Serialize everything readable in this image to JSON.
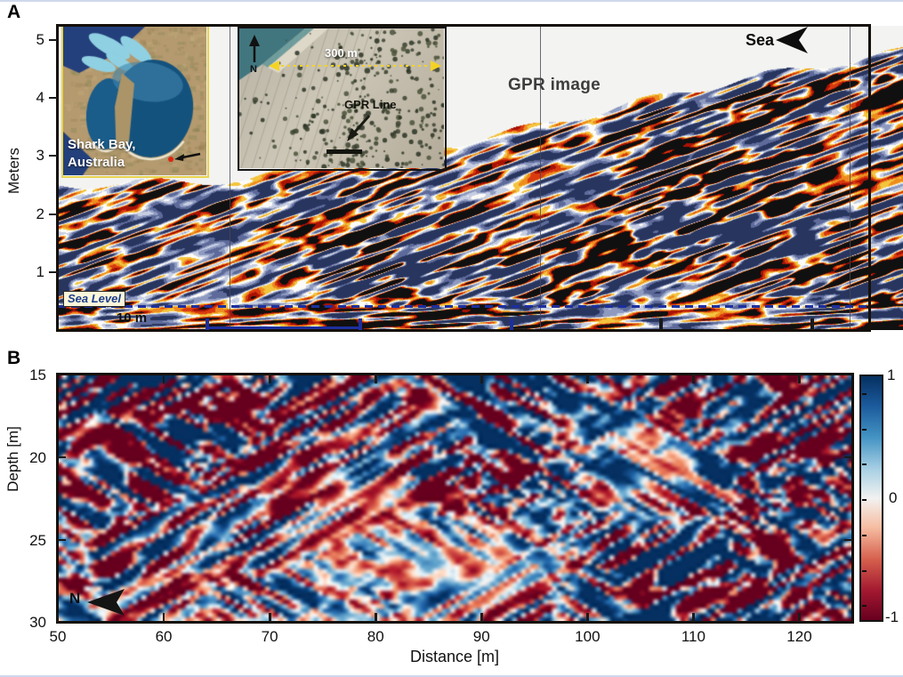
{
  "panel_a": {
    "label": "A",
    "y_axis_label": "Meters",
    "y_tick_labels": [
      "5",
      "4",
      "3",
      "2",
      "1"
    ],
    "sea_label": "Sea",
    "section_label": "GPR image",
    "sea_level_label": "Sea Level",
    "scale_label": "10 m",
    "satellite_inset": {
      "caption_line1": "Shark Bay,",
      "caption_line2": "Australia"
    },
    "aerial_inset": {
      "north_label": "N",
      "scale_label": "300 m",
      "gpr_line_label": "GPR Line"
    }
  },
  "panel_b": {
    "label": "B",
    "y_axis_label": "Depth [m]",
    "x_axis_label": "Distance [m]",
    "y_tick_labels": [
      "15",
      "20",
      "25",
      "30"
    ],
    "x_tick_labels": [
      "50",
      "60",
      "70",
      "80",
      "90",
      "100",
      "110",
      "120"
    ],
    "north_label": "N",
    "colorbar_tick_labels": [
      "1",
      "0",
      "-1"
    ]
  },
  "colors": {
    "gpr_black": "#141414",
    "gpr_red": "#a81205",
    "gpr_orange": "#ee8c1e",
    "gpr_yellow": "#f3c43e",
    "gpr_blue_gray": "#8e9ac0",
    "sea_level_line": "#1d2f9e",
    "bracket_blue": "#1d2f9e",
    "colorbar_blue_max": "#053061",
    "colorbar_red_min": "#67001f",
    "inset_border_yellow": "#e8d44d",
    "sky_above_surface": "#f3f3f1"
  },
  "chart_data": [
    {
      "type": "heatmap",
      "panel": "A",
      "title": "GPR image",
      "y_axis": {
        "label": "Meters",
        "ticks": [
          5,
          4,
          3,
          2,
          1
        ],
        "range": [
          0,
          5.3
        ]
      },
      "x_axis": {
        "tick_interval_label": "10 m",
        "ticks_unlabeled": 5
      },
      "colormap": "seismic amplitude: white bg, yellow-orange-red-black positive, blue-gray negative",
      "annotations": [
        "Sea (arrow pointing left, top right)",
        "Sea Level (dashed navy line near 0.6 m)",
        "10 m scale label",
        "blue bracket under x-axis marks Panel B extent",
        "three thin vertical crossline markers"
      ],
      "insets": [
        {
          "name": "satellite map",
          "caption": "Shark Bay, Australia",
          "marker": "red dot with black arrow"
        },
        {
          "name": "aerial photo",
          "labels": [
            "N",
            "300 m",
            "GPR Line"
          ]
        }
      ],
      "description": "Ground-penetrating radar section; reflectors dip left, ground surface rises toward sea at right"
    },
    {
      "type": "heatmap",
      "panel": "B",
      "x_axis": {
        "label": "Distance [m]",
        "range": [
          50,
          125
        ],
        "ticks": [
          50,
          60,
          70,
          80,
          90,
          100,
          110,
          120
        ]
      },
      "y_axis": {
        "label": "Depth [m]",
        "range": [
          15,
          30
        ],
        "ticks": [
          15,
          20,
          25,
          30
        ]
      },
      "colorbar": {
        "range": [
          -1,
          1
        ],
        "ticks": [
          1,
          0,
          -1
        ],
        "colormap": "RdBu (blue = +1, white = 0, red = -1)"
      },
      "annotations": [
        "N (arrow pointing left, bottom left)"
      ],
      "description": "Normalized amplitude section with diagonal red/blue stripe packets"
    }
  ]
}
